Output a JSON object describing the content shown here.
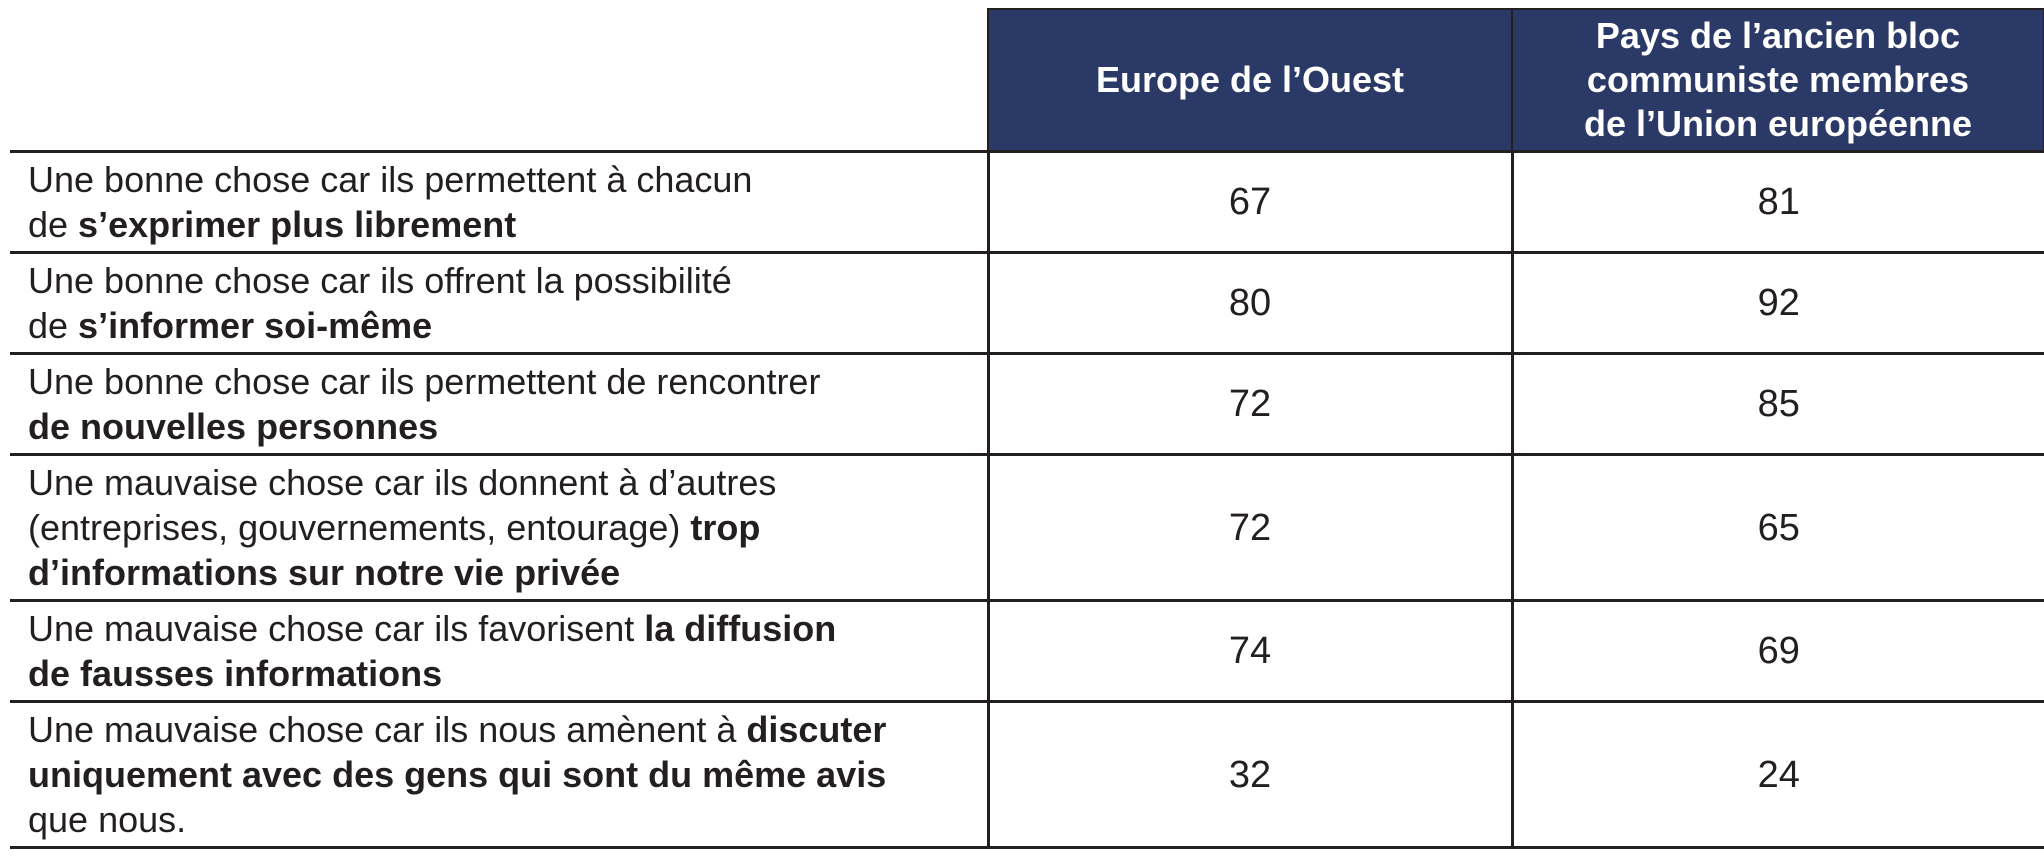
{
  "colors": {
    "header_bg": "#2b3966",
    "header_text": "#ffffff",
    "border": "#231f20",
    "text": "#231f20",
    "background": "#ffffff"
  },
  "table": {
    "corner_label": "",
    "columns": [
      {
        "label": "Europe de l’Ouest"
      },
      {
        "label": "Pays de l’ancien bloc\ncommuniste membres\nde l’Union européenne"
      }
    ],
    "rows": [
      {
        "label_segments": [
          {
            "text": "Une bonne chose car ils permettent à chacun\nde ",
            "bold": false
          },
          {
            "text": "s’exprimer plus librement",
            "bold": true
          }
        ],
        "values": [
          "67",
          "81"
        ]
      },
      {
        "label_segments": [
          {
            "text": "Une bonne chose car ils offrent la possibilité\nde ",
            "bold": false
          },
          {
            "text": "s’informer soi-même",
            "bold": true
          }
        ],
        "values": [
          "80",
          "92"
        ]
      },
      {
        "label_segments": [
          {
            "text": "Une bonne chose car ils permettent de rencontrer\n",
            "bold": false
          },
          {
            "text": "de nouvelles personnes",
            "bold": true
          }
        ],
        "values": [
          "72",
          "85"
        ]
      },
      {
        "label_segments": [
          {
            "text": "Une mauvaise chose car ils donnent à d’autres\n(entreprises, gouvernements, entourage) ",
            "bold": false
          },
          {
            "text": "trop\nd’informations sur notre vie privée",
            "bold": true
          }
        ],
        "values": [
          "72",
          "65"
        ]
      },
      {
        "label_segments": [
          {
            "text": "Une mauvaise chose car ils favorisent ",
            "bold": false
          },
          {
            "text": "la diffusion\nde fausses informations",
            "bold": true
          }
        ],
        "values": [
          "74",
          "69"
        ]
      },
      {
        "label_segments": [
          {
            "text": "Une mauvaise chose car ils nous amènent à ",
            "bold": false
          },
          {
            "text": "discuter\nuniquement avec des gens qui sont du même avis",
            "bold": true
          },
          {
            "text": "\nque nous.",
            "bold": false
          }
        ],
        "values": [
          "32",
          "24"
        ]
      }
    ]
  },
  "chart_data": {
    "type": "table",
    "title": "",
    "columns": [
      "Europe de l’Ouest",
      "Pays de l’ancien bloc communiste membres de l’Union européenne"
    ],
    "rows": [
      {
        "label": "Une bonne chose car ils permettent à chacun de s’exprimer plus librement",
        "values": [
          67,
          81
        ]
      },
      {
        "label": "Une bonne chose car ils offrent la possibilité de s’informer soi-même",
        "values": [
          80,
          92
        ]
      },
      {
        "label": "Une bonne chose car ils permettent de rencontrer de nouvelles personnes",
        "values": [
          72,
          85
        ]
      },
      {
        "label": "Une mauvaise chose car ils donnent à d’autres (entreprises, gouvernements, entourage) trop d’informations sur notre vie privée",
        "values": [
          72,
          65
        ]
      },
      {
        "label": "Une mauvaise chose car ils favorisent la diffusion de fausses informations",
        "values": [
          74,
          69
        ]
      },
      {
        "label": "Une mauvaise chose car ils nous amènent à discuter uniquement avec des gens qui sont du même avis que nous.",
        "values": [
          32,
          24
        ]
      }
    ]
  }
}
